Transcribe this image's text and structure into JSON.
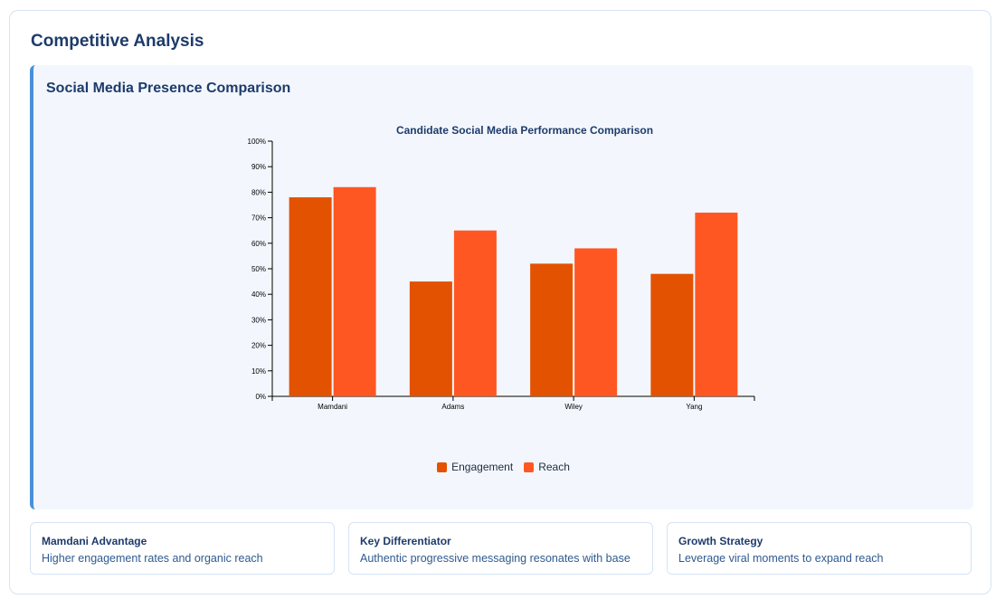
{
  "header": {
    "title": "Competitive Analysis"
  },
  "panel": {
    "title": "Social Media Presence Comparison"
  },
  "colors": {
    "engagement": "#e35200",
    "reach": "#ff5722",
    "accent": "#4a90d9",
    "heading": "#1d3b6b"
  },
  "chart_data": {
    "type": "bar",
    "title": "Candidate Social Media Performance Comparison",
    "categories": [
      "Mamdani",
      "Adams",
      "Wiley",
      "Yang"
    ],
    "series": [
      {
        "name": "Engagement",
        "values": [
          78,
          45,
          52,
          48
        ]
      },
      {
        "name": "Reach",
        "values": [
          82,
          65,
          58,
          72
        ]
      }
    ],
    "ylim": [
      0,
      100
    ],
    "yticks": [
      0,
      10,
      20,
      30,
      40,
      50,
      60,
      70,
      80,
      90,
      100
    ],
    "ytick_labels": [
      "0%",
      "10%",
      "20%",
      "30%",
      "40%",
      "50%",
      "60%",
      "70%",
      "80%",
      "90%",
      "100%"
    ],
    "xlabel": "",
    "ylabel": "",
    "legend": "bottom-center"
  },
  "cards": [
    {
      "title": "Mamdani Advantage",
      "text": "Higher engagement rates and organic reach"
    },
    {
      "title": "Key Differentiator",
      "text": "Authentic progressive messaging resonates with base"
    },
    {
      "title": "Growth Strategy",
      "text": "Leverage viral moments to expand reach"
    }
  ]
}
